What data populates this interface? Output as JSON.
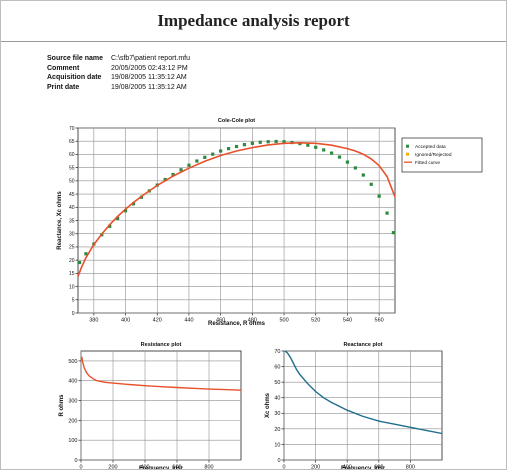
{
  "report": {
    "title": "Impedance analysis report",
    "fields": [
      {
        "label": "Source file name",
        "value": "C:\\sfb7\\patient report.mfu"
      },
      {
        "label": "Comment",
        "value": "20/05/2005 02:43:12 PM"
      },
      {
        "label": "Acquisition date",
        "value": "19/08/2005 11:35:12 AM"
      },
      {
        "label": "Print date",
        "value": "19/08/2005 11:35:12 AM"
      }
    ]
  },
  "colors": {
    "accepted": "#2b8a3e",
    "ignored": "#f0b400",
    "fitted": "#e8502a",
    "reactance": "#1f6e8c",
    "grid": "#8f8f8f"
  },
  "chart_data": [
    {
      "type": "scatter",
      "title": "Cole-Cole plot",
      "xlabel": "Resistance, R ohms",
      "ylabel": "Reactance, Xc ohms",
      "xlim": [
        370,
        570
      ],
      "ylim": [
        0,
        70
      ],
      "xticks": [
        380,
        400,
        420,
        440,
        460,
        480,
        500,
        520,
        540,
        560
      ],
      "yticks": [
        0,
        5,
        10,
        15,
        20,
        25,
        30,
        35,
        40,
        45,
        50,
        55,
        60,
        65,
        70
      ],
      "grid": true,
      "legend": {
        "placement": "right",
        "entries": [
          "Accepted data",
          "Ignored/Rejected",
          "Fitted curve"
        ]
      },
      "series": [
        {
          "name": "Accepted data",
          "kind": "points",
          "color": "#2b8a3e",
          "x": [
            371,
            375,
            380,
            385,
            390,
            395,
            400,
            405,
            410,
            415,
            420,
            425,
            430,
            435,
            440,
            445,
            450,
            455,
            460,
            465,
            470,
            475,
            480,
            485,
            490,
            495,
            500,
            505,
            510,
            515,
            520,
            525,
            530,
            535,
            540,
            545,
            550,
            555,
            560,
            565,
            569
          ],
          "y": [
            19.1,
            22.4,
            26.1,
            29.6,
            32.8,
            35.8,
            38.7,
            41.3,
            43.8,
            46.2,
            48.4,
            50.5,
            52.4,
            54.2,
            55.9,
            57.5,
            58.9,
            60.1,
            61.3,
            62.2,
            63.0,
            63.7,
            64.2,
            64.6,
            64.8,
            64.9,
            64.8,
            64.5,
            64.1,
            63.5,
            62.7,
            61.7,
            60.5,
            59.0,
            57.1,
            54.9,
            52.2,
            48.7,
            44.2,
            37.8,
            30.4
          ]
        },
        {
          "name": "Fitted curve",
          "kind": "line",
          "color": "#e8502a",
          "x": [
            370,
            372,
            375,
            380,
            385,
            390,
            395,
            400,
            405,
            410,
            420,
            430,
            440,
            450,
            460,
            470,
            480,
            490,
            500,
            510,
            520,
            530,
            540,
            545,
            550,
            555,
            560,
            565,
            570
          ],
          "y": [
            13.8,
            17.0,
            20.9,
            25.9,
            29.9,
            33.4,
            36.5,
            39.3,
            41.8,
            44.1,
            48.3,
            51.8,
            54.8,
            57.4,
            59.6,
            61.3,
            62.6,
            63.6,
            64.2,
            64.4,
            64.2,
            63.5,
            62.2,
            61.3,
            60.1,
            58.3,
            55.8,
            51.6,
            43.9
          ]
        }
      ]
    },
    {
      "type": "line",
      "title": "Resistance plot",
      "xlabel": "Frequency, kHz",
      "ylabel": "R ohms",
      "xlim": [
        0,
        1000
      ],
      "ylim": [
        0,
        550
      ],
      "xticks": [
        0,
        200,
        400,
        600,
        800
      ],
      "yticks": [
        0,
        100,
        200,
        300,
        400,
        500
      ],
      "grid": true,
      "series": [
        {
          "kind": "line",
          "color": "#e8502a",
          "x": [
            5,
            10,
            20,
            35,
            50,
            75,
            100,
            150,
            200,
            300,
            400,
            500,
            600,
            700,
            800,
            900,
            1000
          ],
          "y": [
            520,
            495,
            465,
            440,
            425,
            410,
            400,
            392,
            388,
            381,
            375,
            370,
            366,
            362,
            358,
            355,
            352
          ]
        }
      ]
    },
    {
      "type": "line",
      "title": "Reactance plot",
      "xlabel": "Frequency, kHz",
      "ylabel": "Xc ohms",
      "xlim": [
        0,
        1000
      ],
      "ylim": [
        0,
        70
      ],
      "xticks": [
        0,
        200,
        400,
        600,
        800
      ],
      "yticks": [
        0,
        10,
        20,
        30,
        40,
        50,
        60,
        70
      ],
      "grid": true,
      "series": [
        {
          "kind": "line",
          "color": "#1f6e8c",
          "x": [
            5,
            20,
            40,
            60,
            80,
            100,
            150,
            200,
            250,
            300,
            400,
            500,
            600,
            700,
            800,
            900,
            1000
          ],
          "y": [
            70,
            69,
            66,
            62,
            58,
            55,
            49,
            44,
            40,
            37,
            32,
            28,
            25,
            23,
            21,
            19,
            17
          ]
        }
      ]
    }
  ]
}
